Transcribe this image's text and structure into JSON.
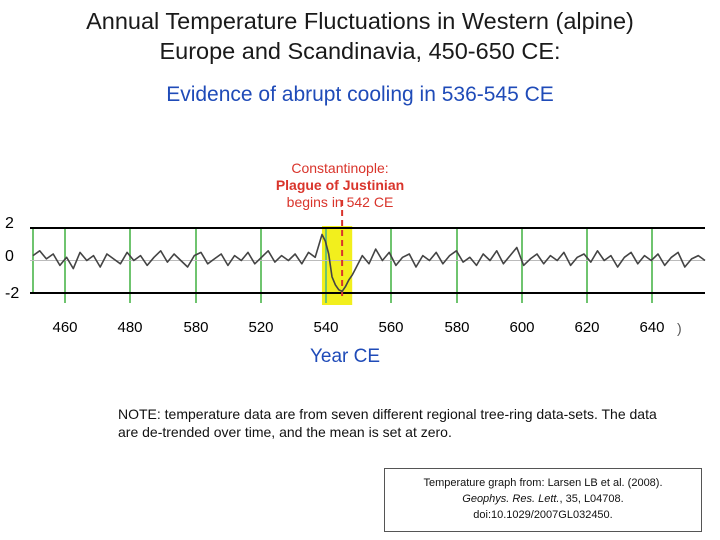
{
  "title_line1": "Annual Temperature Fluctuations in Western (alpine)",
  "title_line2": "Europe and Scandinavia, 450-650 CE:",
  "subtitle": "Evidence of abrupt cooling in 536-545 CE",
  "annotation": {
    "line1": "Constantinople:",
    "line2": "Plague of Justinian",
    "line3": "begins in 542 CE"
  },
  "note_text": "NOTE: temperature data are from seven different regional tree-ring data-sets. The data are de-trended over time, and the mean is set at zero.",
  "source": {
    "line1": "Temperature graph from: Larsen LB et al. (2008).",
    "journal": "Geophys. Res. Lett.",
    "rest": ", 35, L04708.",
    "doi": "doi:10.1029/2007GL032450."
  },
  "paren_mark": ")",
  "colors": {
    "series": "#444444",
    "gridline": "#6fc46f",
    "highlight": "#f2ef1d",
    "event_line": "#d9342b",
    "title": "#1a1a1a",
    "subtitle": "#1f4bb8"
  },
  "chart_data": {
    "type": "line",
    "title": "Annual Temperature Fluctuations in Western (alpine) Europe and Scandinavia, 450-650 CE:",
    "xlabel": "Year CE",
    "ylabel": "",
    "x_tick_labels": [
      "460",
      "480",
      "580",
      "520",
      "540",
      "560",
      "580",
      "600",
      "620",
      "640"
    ],
    "y_tick_labels": [
      "2",
      "0",
      "-2"
    ],
    "xlim": [
      450,
      650
    ],
    "ylim": [
      -2,
      2
    ],
    "grid": true,
    "highlight_range": [
      536,
      545
    ],
    "event_year": 542,
    "series": [
      {
        "x": [
          450,
          452,
          454,
          456,
          458,
          460,
          462,
          464,
          466,
          468,
          470,
          472,
          474,
          476,
          478,
          480,
          482,
          484,
          486,
          488,
          490,
          492,
          494,
          496,
          498,
          500,
          502,
          504,
          506,
          508,
          510,
          512,
          514,
          516,
          518,
          520,
          522,
          524,
          526,
          528,
          530,
          532,
          534,
          536,
          537,
          538,
          539,
          540,
          541,
          542,
          543,
          544,
          545,
          546,
          548,
          550,
          552,
          554,
          556,
          558,
          560,
          562,
          564,
          566,
          568,
          570,
          572,
          574,
          576,
          578,
          580,
          582,
          584,
          586,
          588,
          590,
          592,
          594,
          596,
          598,
          600,
          602,
          604,
          606,
          608,
          610,
          612,
          614,
          616,
          618,
          620,
          622,
          624,
          626,
          628,
          630,
          632,
          634,
          636,
          638,
          640,
          642,
          644,
          646,
          648,
          650
        ],
        "values": [
          0.3,
          0.6,
          0.1,
          0.4,
          -0.3,
          0.2,
          -0.5,
          0.5,
          0.0,
          0.3,
          -0.4,
          0.4,
          0.1,
          -0.2,
          0.5,
          0.0,
          0.3,
          -0.3,
          0.2,
          0.6,
          -0.1,
          0.4,
          0.0,
          -0.4,
          0.3,
          0.5,
          -0.2,
          0.1,
          0.4,
          -0.3,
          0.3,
          0.0,
          0.5,
          -0.2,
          0.2,
          0.6,
          -0.1,
          0.3,
          0.0,
          0.4,
          -0.2,
          0.5,
          0.2,
          1.6,
          1.2,
          0.4,
          -1.0,
          -1.5,
          -1.8,
          -1.9,
          -1.6,
          -1.2,
          -0.9,
          -0.5,
          0.3,
          -0.2,
          0.7,
          0.0,
          0.5,
          -0.3,
          0.2,
          0.4,
          -0.4,
          0.3,
          0.0,
          0.5,
          -0.2,
          0.3,
          0.6,
          -0.1,
          0.2,
          -0.3,
          0.4,
          0.0,
          0.6,
          -0.2,
          0.3,
          0.8,
          -0.3,
          0.1,
          0.4,
          -0.2,
          0.3,
          0.0,
          0.5,
          -0.3,
          0.2,
          0.4,
          -0.1,
          0.6,
          0.0,
          0.3,
          -0.4,
          0.2,
          0.5,
          -0.2,
          0.3,
          0.0,
          0.4,
          -0.3,
          0.2,
          0.5,
          -0.4,
          0.1,
          0.3,
          0.0
        ]
      }
    ]
  }
}
